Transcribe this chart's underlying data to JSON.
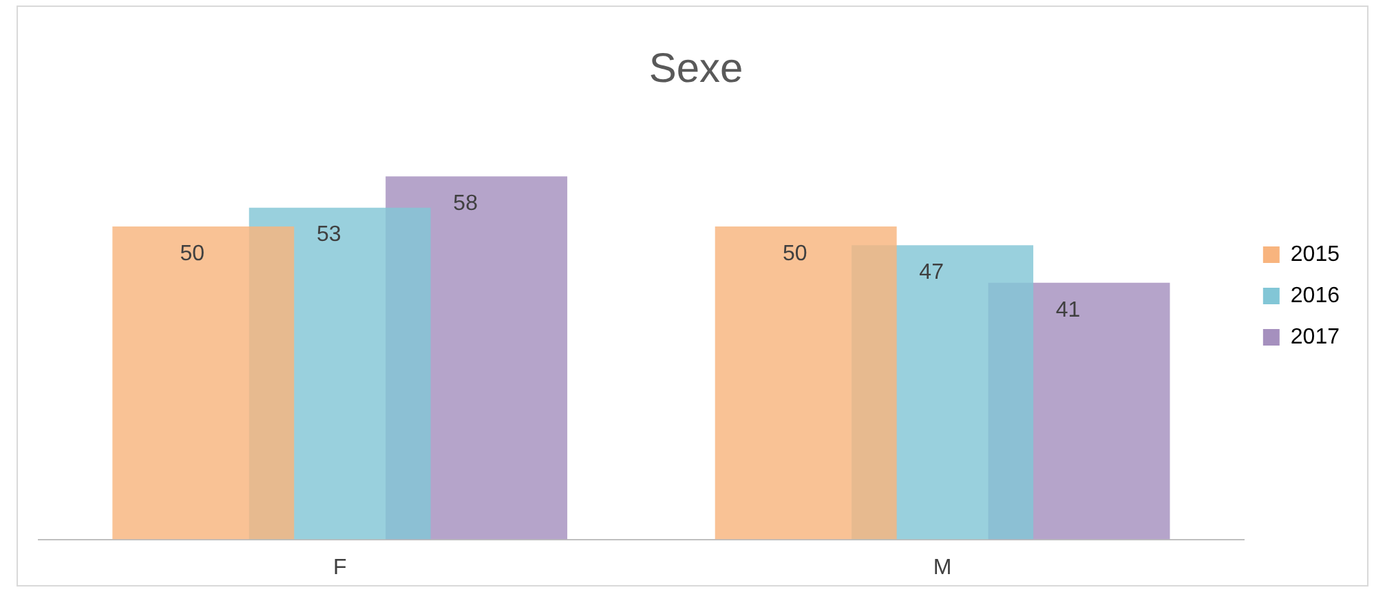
{
  "chart_data": {
    "type": "bar",
    "title": "Sexe",
    "categories": [
      "F",
      "M"
    ],
    "series": [
      {
        "name": "2015",
        "color": "#f8b47e",
        "values": [
          50,
          50
        ]
      },
      {
        "name": "2016",
        "color": "#82c6d6",
        "values": [
          53,
          47
        ]
      },
      {
        "name": "2017",
        "color": "#a590be",
        "values": [
          58,
          41
        ]
      }
    ],
    "data_labels": true,
    "legend": "right",
    "grid": false
  }
}
